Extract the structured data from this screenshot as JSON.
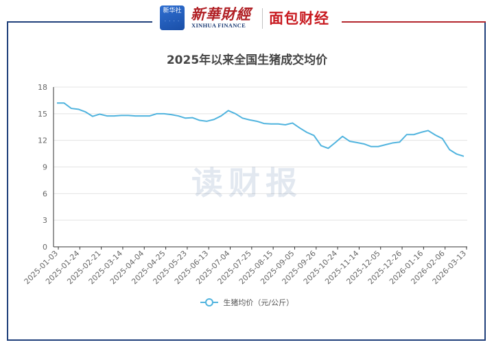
{
  "logos": {
    "xinhua_badge_text": "新华社",
    "xinhua_cn": "新華財經",
    "xinhua_en": "XINHUA FINANCE",
    "meiribao": "面包财经"
  },
  "watermark": "读财报",
  "colors": {
    "line": "#4fb3de",
    "frame_left": "#1f3f7a",
    "frame_right": "#b3262c",
    "grid": "#e3e3e3"
  },
  "chart_data": {
    "type": "line",
    "title": "2025年以来全国生猪成交均价",
    "xlabel": "",
    "ylabel": "",
    "ylim": [
      0,
      18
    ],
    "yticks": [
      0,
      3,
      6,
      9,
      12,
      15,
      18
    ],
    "grid": true,
    "legend_position": "bottom",
    "x_tick_labels": [
      "2025-01-03",
      "2025-01-24",
      "2025-02-21",
      "2025-03-14",
      "2025-04-04",
      "2025-04-25",
      "2025-05-23",
      "2025-06-13",
      "2025-07-04",
      "2025-07-25",
      "2025-08-15",
      "2025-09-05",
      "2025-09-26",
      "2025-10-24",
      "2025-11-14",
      "2025-12-05",
      "2025-12-26",
      "2026-01-16",
      "2026-02-06",
      "2026-03-13"
    ],
    "series": [
      {
        "name": "生猪均价（元/公斤）",
        "values": [
          16.2,
          16.2,
          15.6,
          15.5,
          15.2,
          14.7,
          14.95,
          14.75,
          14.75,
          14.8,
          14.8,
          14.75,
          14.75,
          14.75,
          15.0,
          15.0,
          14.9,
          14.75,
          14.5,
          14.55,
          14.25,
          14.15,
          14.35,
          14.75,
          15.35,
          15.0,
          14.5,
          14.3,
          14.15,
          13.9,
          13.85,
          13.85,
          13.75,
          13.95,
          13.4,
          12.9,
          12.55,
          11.4,
          11.1,
          11.75,
          12.45,
          11.9,
          11.75,
          11.6,
          11.3,
          11.3,
          11.5,
          11.7,
          11.8,
          12.65,
          12.65,
          12.9,
          13.1,
          12.6,
          12.2,
          10.95,
          10.45,
          10.2
        ]
      }
    ]
  }
}
